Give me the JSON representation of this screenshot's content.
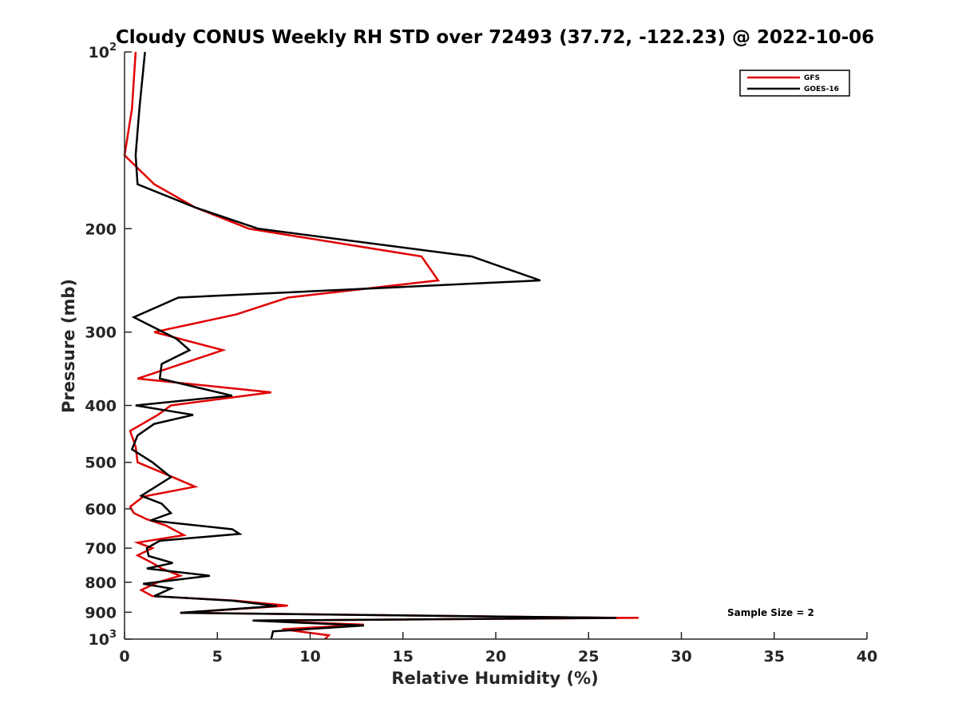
{
  "chart_data": {
    "type": "line",
    "title": "Cloudy CONUS Weekly RH STD over 72493 (37.72, -122.23) @ 2022-10-06",
    "xlabel": "Relative Humidity (%)",
    "ylabel": "Pressure (mb)",
    "xlim": [
      0,
      40
    ],
    "ylim": [
      100,
      1000
    ],
    "y_scale": "log",
    "y_reversed": true,
    "x_ticks": [
      0,
      5,
      10,
      15,
      20,
      25,
      30,
      35,
      40
    ],
    "y_ticks": [
      100,
      200,
      300,
      400,
      500,
      600,
      700,
      800,
      900,
      1000
    ],
    "y_tick_labels": [
      {
        "value": 100,
        "base": "10",
        "exp": "2"
      },
      {
        "value": 200,
        "base": "200",
        "exp": ""
      },
      {
        "value": 300,
        "base": "300",
        "exp": ""
      },
      {
        "value": 400,
        "base": "400",
        "exp": ""
      },
      {
        "value": 500,
        "base": "500",
        "exp": ""
      },
      {
        "value": 600,
        "base": "600",
        "exp": ""
      },
      {
        "value": 700,
        "base": "700",
        "exp": ""
      },
      {
        "value": 800,
        "base": "800",
        "exp": ""
      },
      {
        "value": 900,
        "base": "900",
        "exp": ""
      },
      {
        "value": 1000,
        "base": "10",
        "exp": "3"
      }
    ],
    "grid": false,
    "legend_position": "top-right",
    "annotation": "Sample Size = 2",
    "series": [
      {
        "name": "GFS",
        "color": "#e00000",
        "points": [
          [
            0.6,
            100
          ],
          [
            0.4,
            125
          ],
          [
            0.0,
            150
          ],
          [
            1.6,
            168
          ],
          [
            3.8,
            184
          ],
          [
            6.7,
            200
          ],
          [
            16.0,
            223
          ],
          [
            16.9,
            245
          ],
          [
            8.8,
            262
          ],
          [
            6.0,
            280
          ],
          [
            1.6,
            300
          ],
          [
            5.3,
            322
          ],
          [
            0.7,
            360
          ],
          [
            7.9,
            380
          ],
          [
            2.5,
            400
          ],
          [
            1.8,
            415
          ],
          [
            0.3,
            442
          ],
          [
            0.6,
            470
          ],
          [
            0.7,
            500
          ],
          [
            2.0,
            520
          ],
          [
            3.8,
            550
          ],
          [
            1.0,
            572
          ],
          [
            0.3,
            595
          ],
          [
            0.5,
            610
          ],
          [
            1.2,
            625
          ],
          [
            2.2,
            640
          ],
          [
            3.2,
            665
          ],
          [
            0.7,
            685
          ],
          [
            1.5,
            700
          ],
          [
            0.7,
            720
          ],
          [
            1.5,
            742
          ],
          [
            2.0,
            758
          ],
          [
            3.0,
            780
          ],
          [
            1.8,
            800
          ],
          [
            0.9,
            825
          ],
          [
            1.5,
            845
          ],
          [
            6.0,
            860
          ],
          [
            8.8,
            877
          ],
          [
            3.0,
            902
          ],
          [
            26.5,
            920
          ],
          [
            27.7,
            920
          ],
          [
            7.0,
            930
          ],
          [
            12.9,
            945
          ],
          [
            8.5,
            962
          ],
          [
            11.0,
            985
          ],
          [
            10.8,
            1000
          ]
        ]
      },
      {
        "name": "GOES-16",
        "color": "#000000",
        "points": [
          [
            1.1,
            100
          ],
          [
            0.8,
            125
          ],
          [
            0.6,
            150
          ],
          [
            0.7,
            168
          ],
          [
            3.8,
            184
          ],
          [
            7.2,
            200
          ],
          [
            18.7,
            223
          ],
          [
            22.4,
            245
          ],
          [
            2.9,
            262
          ],
          [
            0.5,
            283
          ],
          [
            2.8,
            308
          ],
          [
            3.5,
            322
          ],
          [
            2.0,
            340
          ],
          [
            1.9,
            360
          ],
          [
            5.8,
            385
          ],
          [
            0.6,
            400
          ],
          [
            3.7,
            415
          ],
          [
            1.6,
            430
          ],
          [
            0.7,
            450
          ],
          [
            0.4,
            475
          ],
          [
            1.5,
            500
          ],
          [
            2.5,
            530
          ],
          [
            0.9,
            570
          ],
          [
            2.0,
            588
          ],
          [
            2.5,
            610
          ],
          [
            1.4,
            628
          ],
          [
            5.8,
            650
          ],
          [
            6.2,
            662
          ],
          [
            1.9,
            680
          ],
          [
            1.2,
            700
          ],
          [
            1.3,
            722
          ],
          [
            2.6,
            742
          ],
          [
            1.2,
            758
          ],
          [
            4.6,
            780
          ],
          [
            1.0,
            805
          ],
          [
            2.5,
            820
          ],
          [
            1.6,
            845
          ],
          [
            5.8,
            860
          ],
          [
            8.2,
            878
          ],
          [
            3.0,
            902
          ],
          [
            26.5,
            920
          ],
          [
            6.9,
            930
          ],
          [
            12.9,
            948
          ],
          [
            8.0,
            970
          ],
          [
            7.9,
            1000
          ]
        ]
      }
    ]
  }
}
